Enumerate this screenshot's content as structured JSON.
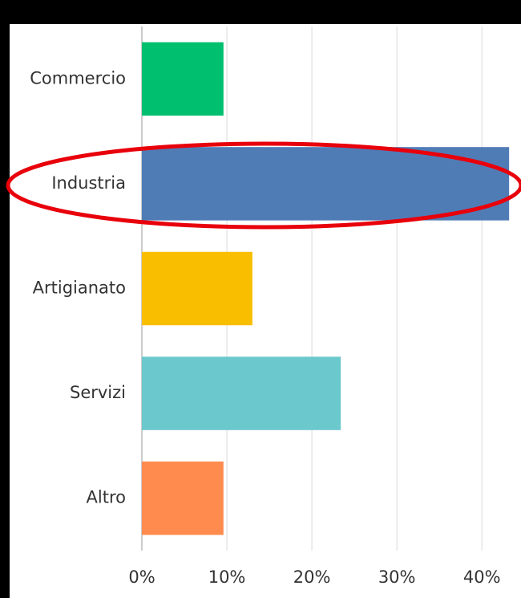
{
  "chart_data": {
    "type": "bar",
    "orientation": "horizontal",
    "categories": [
      "Commercio",
      "Industria",
      "Artigianato",
      "Servizi",
      "Altro"
    ],
    "values": [
      9.6,
      43.2,
      13.0,
      23.4,
      9.6
    ],
    "colors": [
      "#00bf6f",
      "#507cb6",
      "#f9be00",
      "#6bc8cd",
      "#ff8b4f"
    ],
    "xlim": [
      0,
      44.6
    ],
    "xticks": [
      {
        "value": 0,
        "label": "0%"
      },
      {
        "value": 10,
        "label": "10%"
      },
      {
        "value": 20,
        "label": "20%"
      },
      {
        "value": 30,
        "label": "30%"
      },
      {
        "value": 40,
        "label": "40%"
      }
    ],
    "grid": true
  }
}
